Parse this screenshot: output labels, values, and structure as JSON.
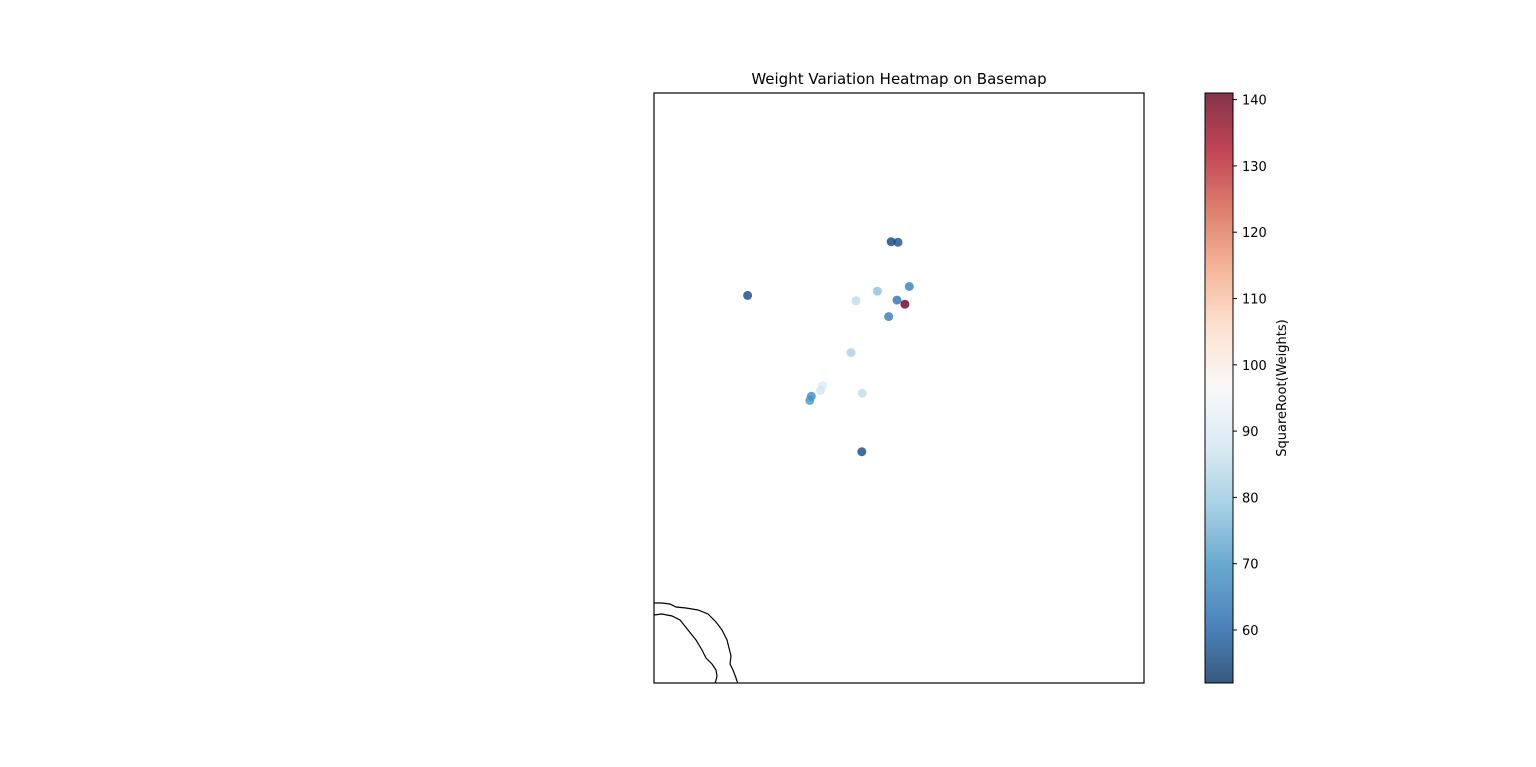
{
  "chart_data": {
    "type": "scatter",
    "title": "Weight Variation Heatmap on Basemap",
    "colorbar": {
      "label": "SquareRoot(Weights)",
      "range": [
        52,
        141
      ],
      "ticks": [
        60,
        70,
        80,
        90,
        100,
        110,
        120,
        130,
        140
      ],
      "colormap": "RdBu_r",
      "alpha": 0.8
    },
    "map_extent": {
      "x": [
        0,
        100
      ],
      "y": [
        0,
        100
      ]
    },
    "points": [
      {
        "x": 48.4,
        "y": 74.8,
        "value": 55
      },
      {
        "x": 49.8,
        "y": 74.7,
        "value": 57
      },
      {
        "x": 52.1,
        "y": 67.2,
        "value": 66
      },
      {
        "x": 19.1,
        "y": 65.7,
        "value": 56
      },
      {
        "x": 45.6,
        "y": 66.4,
        "value": 78
      },
      {
        "x": 41.2,
        "y": 64.8,
        "value": 85
      },
      {
        "x": 49.6,
        "y": 64.9,
        "value": 63
      },
      {
        "x": 51.2,
        "y": 64.2,
        "value": 141
      },
      {
        "x": 47.9,
        "y": 62.1,
        "value": 65
      },
      {
        "x": 40.2,
        "y": 56.0,
        "value": 82
      },
      {
        "x": 34.4,
        "y": 50.4,
        "value": 90
      },
      {
        "x": 34.0,
        "y": 49.6,
        "value": 88
      },
      {
        "x": 42.5,
        "y": 49.1,
        "value": 85
      },
      {
        "x": 32.1,
        "y": 48.6,
        "value": 68
      },
      {
        "x": 31.8,
        "y": 47.9,
        "value": 70
      },
      {
        "x": 42.4,
        "y": 39.2,
        "value": 56
      }
    ]
  }
}
